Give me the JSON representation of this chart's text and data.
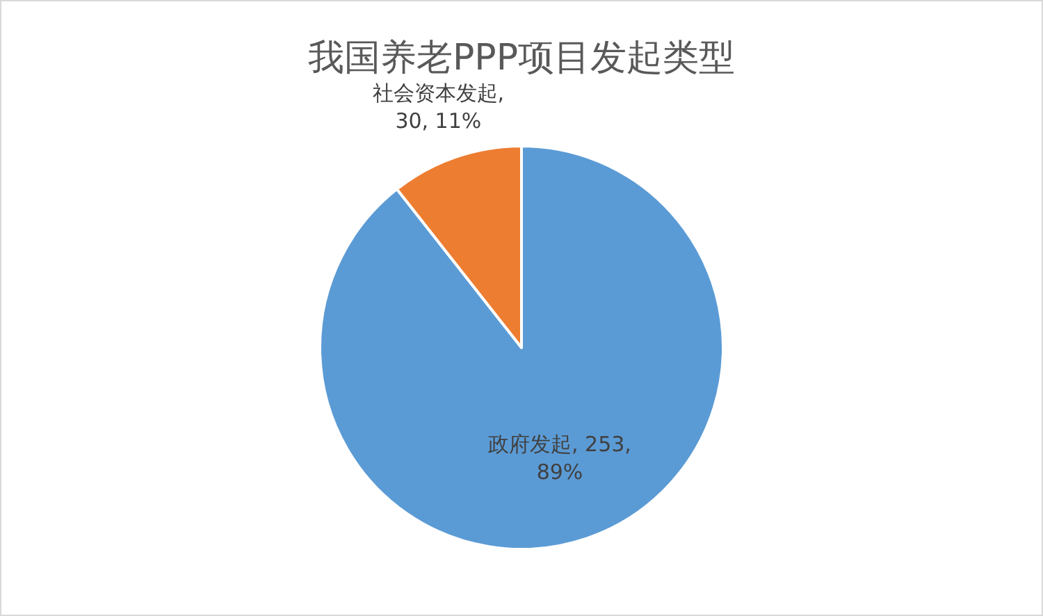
{
  "chart_data": {
    "type": "pie",
    "title": "我国养老PPP项目发起类型",
    "categories": [
      "政府发起",
      "社会资本发起"
    ],
    "values": [
      253,
      30
    ],
    "value_labels": [
      ", 253, 89%",
      ", 30, 11%"
    ],
    "colors": [
      "#5b9bd5",
      "#ed7d31"
    ]
  }
}
